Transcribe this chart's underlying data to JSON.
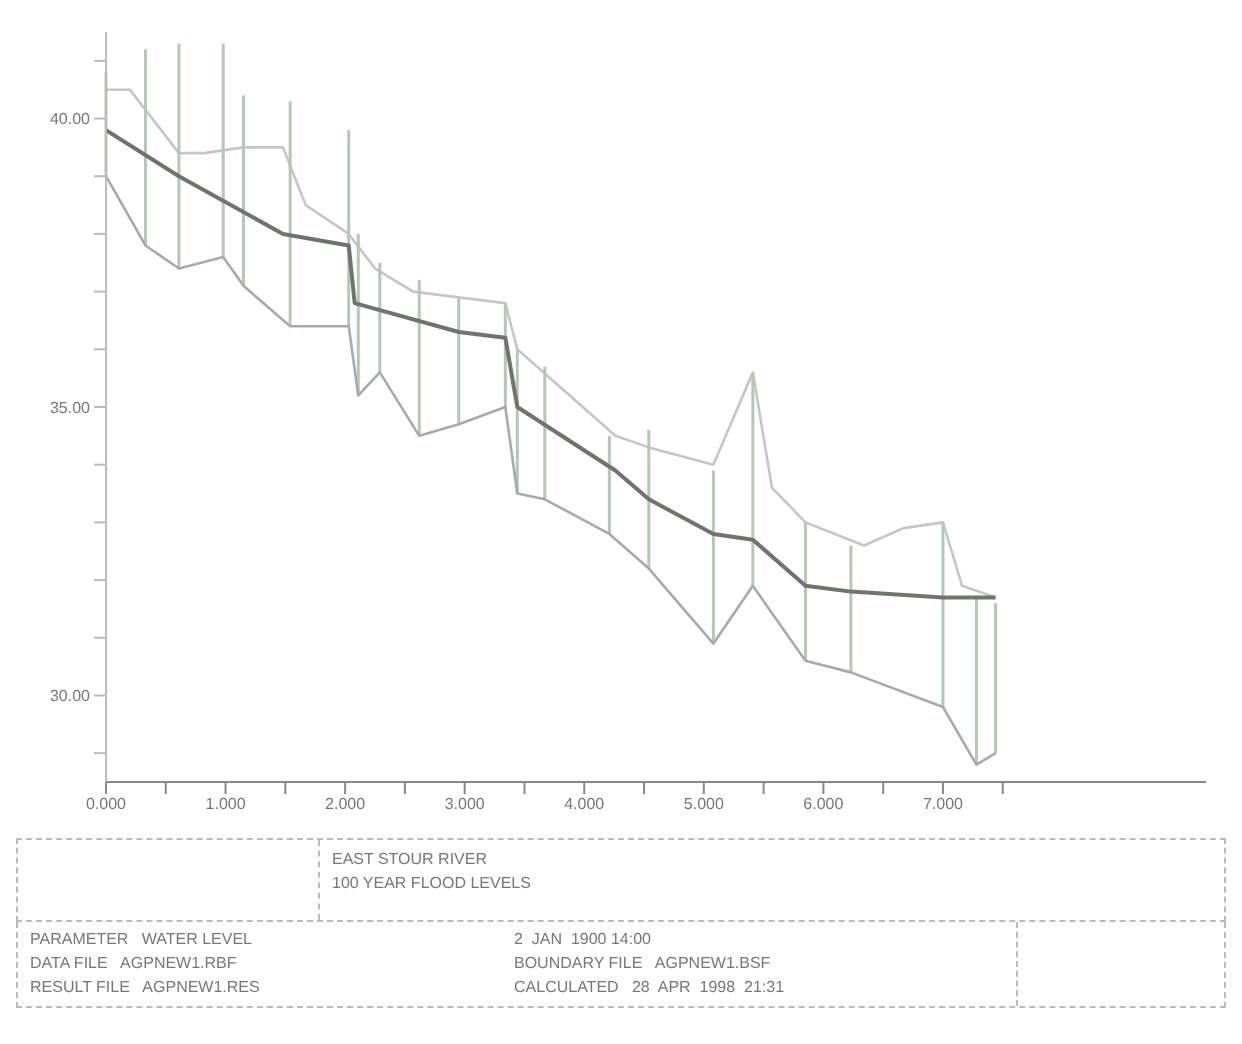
{
  "chart_data": {
    "type": "line",
    "title": "EAST STOUR RIVER",
    "subtitle": "100 YEAR FLOOD LEVELS",
    "xlim": [
      0,
      9.2
    ],
    "xticks": [
      {
        "value": 0,
        "label": "0.000"
      },
      {
        "value": 0.5,
        "label": null
      },
      {
        "value": 1,
        "label": "1.000"
      },
      {
        "value": 1.5,
        "label": null
      },
      {
        "value": 2,
        "label": "2.000"
      },
      {
        "value": 2.5,
        "label": null
      },
      {
        "value": 3,
        "label": "3.000"
      },
      {
        "value": 3.5,
        "label": null
      },
      {
        "value": 4,
        "label": "4.000"
      },
      {
        "value": 4.5,
        "label": null
      },
      {
        "value": 5,
        "label": "5.000"
      },
      {
        "value": 5.5,
        "label": null
      },
      {
        "value": 6,
        "label": "6.000"
      },
      {
        "value": 6.5,
        "label": null
      },
      {
        "value": 7,
        "label": "7.000"
      },
      {
        "value": 7.5,
        "label": null
      }
    ],
    "ylim": [
      28.5,
      41.5
    ],
    "yticks": [
      {
        "value": 29,
        "label": null
      },
      {
        "value": 30,
        "label": "30.00"
      },
      {
        "value": 31,
        "label": null
      },
      {
        "value": 32,
        "label": null
      },
      {
        "value": 33,
        "label": null
      },
      {
        "value": 34,
        "label": null
      },
      {
        "value": 35,
        "label": "35.00"
      },
      {
        "value": 36,
        "label": null
      },
      {
        "value": 37,
        "label": null
      },
      {
        "value": 38,
        "label": null
      },
      {
        "value": 39,
        "label": null
      },
      {
        "value": 40,
        "label": "40.00"
      },
      {
        "value": 41,
        "label": null
      }
    ],
    "marker": "none",
    "line_style": "solid",
    "series": [
      {
        "color": "#c4c8c4",
        "x": [
          0,
          0.2,
          0.61,
          0.82,
          1.15,
          1.48,
          1.67,
          2.03,
          2.25,
          2.57,
          2.95,
          3.34,
          3.44,
          4.26,
          4.54,
          5.08,
          5.41,
          5.57,
          5.85,
          6.34,
          6.67,
          7.0,
          7.16,
          7.44
        ],
        "values": [
          40.5,
          40.5,
          39.4,
          39.4,
          39.5,
          39.5,
          38.5,
          38.0,
          37.4,
          37.0,
          36.9,
          36.8,
          36.0,
          34.5,
          34.3,
          34.0,
          35.6,
          33.6,
          33.0,
          32.6,
          32.9,
          33.0,
          31.9,
          31.7
        ]
      },
      {
        "color": "#a8aca8",
        "x": [
          0,
          0.33,
          0.61,
          0.98,
          1.15,
          1.54,
          2.03,
          2.11,
          2.29,
          2.62,
          2.95,
          3.34,
          3.44,
          3.67,
          4.21,
          4.54,
          5.08,
          5.41,
          5.85,
          6.23,
          7.0,
          7.28,
          7.44
        ],
        "values": [
          39.0,
          37.8,
          37.4,
          37.6,
          37.1,
          36.4,
          36.4,
          35.2,
          35.6,
          34.5,
          34.7,
          35.0,
          33.5,
          33.4,
          32.8,
          32.2,
          30.9,
          31.9,
          30.6,
          30.4,
          29.8,
          28.8,
          29.0
        ],
        "errors": [
          [
            39.0,
            40.8
          ],
          [
            37.8,
            41.2
          ],
          [
            37.4,
            41.3
          ],
          [
            37.6,
            41.3
          ],
          [
            37.1,
            40.4
          ],
          [
            36.4,
            40.3
          ],
          [
            36.4,
            39.8
          ],
          [
            35.2,
            38.0
          ],
          [
            35.6,
            37.5
          ],
          [
            34.5,
            37.2
          ],
          [
            34.7,
            36.9
          ],
          [
            35.0,
            36.8
          ],
          [
            33.5,
            36.0
          ],
          [
            33.4,
            35.7
          ],
          [
            32.8,
            34.5
          ],
          [
            32.2,
            34.6
          ],
          [
            30.9,
            33.9
          ],
          [
            31.9,
            35.6
          ],
          [
            30.6,
            33.0
          ],
          [
            30.4,
            32.6
          ],
          [
            29.8,
            33.0
          ],
          [
            28.8,
            31.7
          ],
          [
            29.0,
            31.6
          ]
        ]
      },
      {
        "color": "#6f746f",
        "x": [
          0,
          0.61,
          1.48,
          2.03,
          2.08,
          2.95,
          3.34,
          3.44,
          4.26,
          4.54,
          5.08,
          5.41,
          5.85,
          6.23,
          7.0,
          7.44
        ],
        "values": [
          39.8,
          39.0,
          38.0,
          37.8,
          36.8,
          36.3,
          36.2,
          35.0,
          33.9,
          33.4,
          32.8,
          32.7,
          31.9,
          31.8,
          31.7,
          31.7
        ]
      }
    ],
    "annotations": [
      "PARAMETER   WATER LEVEL",
      "DATA FILE   AGPNEW1.RBF",
      "RESULT FILE   AGPNEW1.RES",
      "2  JAN  1900 14:00",
      "BOUNDARY FILE   AGPNEW1.BSF",
      "CALCULATED   28  APR  1998  21:31"
    ]
  }
}
